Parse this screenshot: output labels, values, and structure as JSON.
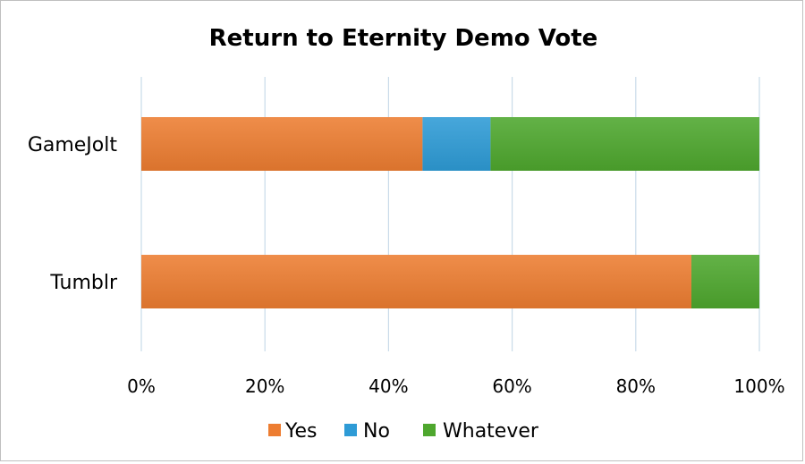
{
  "chart_data": {
    "type": "bar",
    "orientation": "horizontal",
    "stacked": "percent",
    "title": "Return to Eternity Demo Vote",
    "categories": [
      "GameJolt",
      "Tumblr"
    ],
    "series": [
      {
        "name": "Yes",
        "values": [
          45.5,
          89
        ],
        "color": "#ed7d31"
      },
      {
        "name": "No",
        "values": [
          11,
          0
        ],
        "color": "#2e9bd6"
      },
      {
        "name": "Whatever",
        "values": [
          43.5,
          11
        ],
        "color": "#4ea72e"
      }
    ],
    "xlim": [
      0,
      100
    ],
    "x_ticks": [
      "0%",
      "20%",
      "40%",
      "60%",
      "80%",
      "100%"
    ],
    "gridlines": "vertical",
    "legend_position": "bottom"
  }
}
